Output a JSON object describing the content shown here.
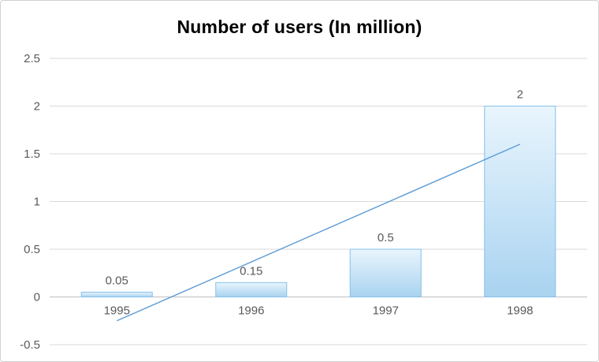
{
  "chart_data": {
    "type": "bar",
    "title": "Number of users (In million)",
    "categories": [
      "1995",
      "1996",
      "1997",
      "1998"
    ],
    "values": [
      0.05,
      0.15,
      0.5,
      2
    ],
    "data_labels": [
      "0.05",
      "0.15",
      "0.5",
      "2"
    ],
    "xlabel": "",
    "ylabel": "",
    "ylim": [
      -0.5,
      2.5
    ],
    "yticks": [
      2.5,
      2,
      1.5,
      1,
      0.5,
      0,
      -0.5
    ],
    "ytick_labels": [
      "2.5",
      "2",
      "1.5",
      "1",
      "0.5",
      "0",
      "-0.5"
    ],
    "grid": true,
    "legend": "none",
    "trendline": {
      "type": "linear",
      "color": "#5b9bd5",
      "points": [
        {
          "x": 0,
          "y": -0.25
        },
        {
          "x": 3,
          "y": 1.6
        }
      ]
    },
    "style": {
      "grid": "#d9d9d9",
      "axis": "#bfbfbf",
      "tick_label": "#595959",
      "data_label": "#595959",
      "title_color": "#000000",
      "bar_fill_top": "#e9f5fd",
      "bar_fill_bottom": "#a9d3f0",
      "bar_border": "#86c0e9",
      "frame_border": "#d2d2d2",
      "background": "#ffffff"
    }
  }
}
